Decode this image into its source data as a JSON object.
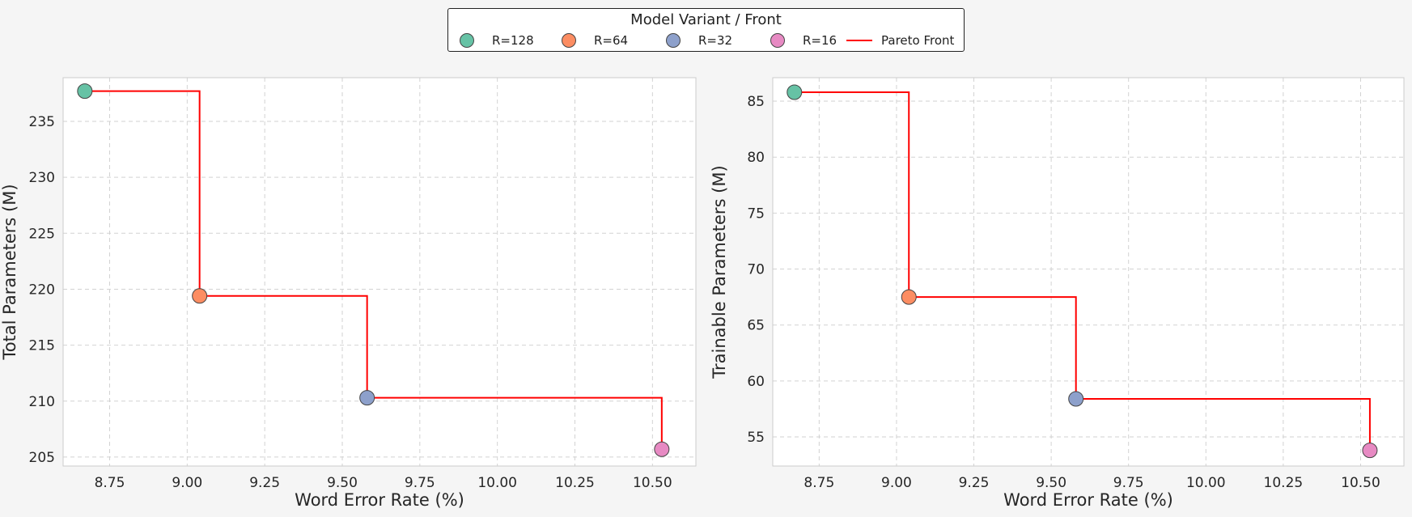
{
  "legend": {
    "title": "Model Variant / Front",
    "entries": [
      {
        "label": "R=128",
        "kind": "marker",
        "color": "#66c2a5"
      },
      {
        "label": "R=64",
        "kind": "marker",
        "color": "#fc8d62"
      },
      {
        "label": "R=32",
        "kind": "marker",
        "color": "#8da0cb"
      },
      {
        "label": "R=16",
        "kind": "marker",
        "color": "#e78ac3"
      },
      {
        "label": "Pareto Front",
        "kind": "line",
        "color": "#ff0000"
      }
    ]
  },
  "chart_data": [
    {
      "type": "scatter",
      "xlabel": "Word Error Rate (%)",
      "ylabel": "Total Parameters (M)",
      "xlim": [
        8.6,
        10.64
      ],
      "ylim": [
        204.2,
        238.9
      ],
      "xticks": [
        8.75,
        9.0,
        9.25,
        9.5,
        9.75,
        10.0,
        10.25,
        10.5
      ],
      "xtick_labels": [
        "8.75",
        "9.00",
        "9.25",
        "9.50",
        "9.75",
        "10.00",
        "10.25",
        "10.50"
      ],
      "yticks": [
        205,
        210,
        215,
        220,
        225,
        230,
        235
      ],
      "ytick_labels": [
        "205",
        "210",
        "215",
        "220",
        "225",
        "230",
        "235"
      ],
      "grid": true,
      "points": [
        {
          "series": "R=128",
          "x": 8.67,
          "y": 237.7
        },
        {
          "series": "R=64",
          "x": 9.04,
          "y": 219.4
        },
        {
          "series": "R=32",
          "x": 9.58,
          "y": 210.3
        },
        {
          "series": "R=16",
          "x": 10.53,
          "y": 205.7
        }
      ],
      "pareto_front": {
        "name": "Pareto Front",
        "style": "step",
        "x": [
          8.67,
          9.04,
          9.58,
          10.53
        ],
        "y": [
          237.7,
          219.4,
          210.3,
          205.7
        ]
      }
    },
    {
      "type": "scatter",
      "xlabel": "Word Error Rate (%)",
      "ylabel": "Trainable Parameters (M)",
      "xlim": [
        8.6,
        10.64
      ],
      "ylim": [
        52.4,
        87.1
      ],
      "xticks": [
        8.75,
        9.0,
        9.25,
        9.5,
        9.75,
        10.0,
        10.25,
        10.5
      ],
      "xtick_labels": [
        "8.75",
        "9.00",
        "9.25",
        "9.50",
        "9.75",
        "10.00",
        "10.25",
        "10.50"
      ],
      "yticks": [
        55,
        60,
        65,
        70,
        75,
        80,
        85
      ],
      "ytick_labels": [
        "55",
        "60",
        "65",
        "70",
        "75",
        "80",
        "85"
      ],
      "grid": true,
      "points": [
        {
          "series": "R=128",
          "x": 8.67,
          "y": 85.8
        },
        {
          "series": "R=64",
          "x": 9.04,
          "y": 67.5
        },
        {
          "series": "R=32",
          "x": 9.58,
          "y": 58.4
        },
        {
          "series": "R=16",
          "x": 10.53,
          "y": 53.8
        }
      ],
      "pareto_front": {
        "name": "Pareto Front",
        "style": "step",
        "x": [
          8.67,
          9.04,
          9.58,
          10.53
        ],
        "y": [
          85.8,
          67.5,
          58.4,
          53.8
        ]
      }
    }
  ]
}
